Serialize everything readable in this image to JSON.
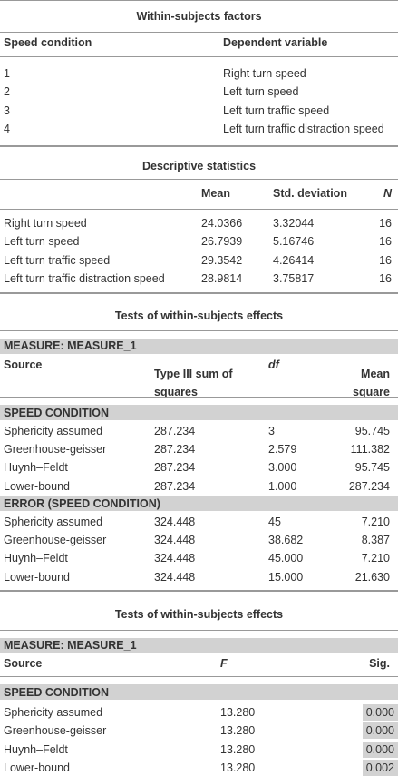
{
  "within_subjects_factors": {
    "title": "Within-subjects factors",
    "header": [
      "Speed condition",
      "Dependent variable"
    ],
    "rows": [
      [
        "1",
        "Right turn speed"
      ],
      [
        "2",
        "Left turn speed"
      ],
      [
        "3",
        "Left turn traffic speed"
      ],
      [
        "4",
        "Left turn traffic distraction speed"
      ]
    ]
  },
  "descriptive_statistics": {
    "title": "Descriptive statistics",
    "header": [
      "Mean",
      "Std. deviation",
      "N"
    ],
    "rows": [
      [
        "Right turn speed",
        "24.0366",
        "3.32044",
        "16"
      ],
      [
        "Left turn speed",
        "26.7939",
        "5.16746",
        "16"
      ],
      [
        "Left turn traffic speed",
        "29.3542",
        "4.26414",
        "16"
      ],
      [
        "Left turn traffic distraction speed",
        "28.9814",
        "3.75817",
        "16"
      ]
    ]
  },
  "tests_of_effects_1": {
    "title": "Tests of within-subjects effects",
    "measure": "MEASURE: MEASURE_1",
    "header": [
      "Source",
      "Type III sum of squares",
      "df",
      "Mean square"
    ],
    "groups": [
      {
        "label": "SPEED CONDITION",
        "rows": [
          [
            "Sphericity assumed",
            "287.234",
            "3",
            "95.745"
          ],
          [
            "Greenhouse-geisser",
            "287.234",
            "2.579",
            "111.382"
          ],
          [
            "Huynh–Feldt",
            "287.234",
            "3.000",
            "95.745"
          ],
          [
            "Lower-bound",
            "287.234",
            "1.000",
            "287.234"
          ]
        ]
      },
      {
        "label": "ERROR (SPEED CONDITION)",
        "rows": [
          [
            "Sphericity assumed",
            "324.448",
            "45",
            "7.210"
          ],
          [
            "Greenhouse-geisser",
            "324.448",
            "38.682",
            "8.387"
          ],
          [
            "Huynh–Feldt",
            "324.448",
            "45.000",
            "7.210"
          ],
          [
            "Lower-bound",
            "324.448",
            "15.000",
            "21.630"
          ]
        ]
      }
    ]
  },
  "tests_of_effects_2": {
    "title": "Tests of within-subjects effects",
    "measure": "MEASURE: MEASURE_1",
    "header": [
      "Source",
      "F",
      "Sig."
    ],
    "groups": [
      {
        "label": "SPEED CONDITION",
        "rows": [
          [
            "Sphericity assumed",
            "13.280",
            "0.000"
          ],
          [
            "Greenhouse-geisser",
            "13.280",
            "0.000"
          ],
          [
            "Huynh–Feldt",
            "13.280",
            "0.000"
          ],
          [
            "Lower-bound",
            "13.280",
            "0.002"
          ]
        ]
      }
    ]
  }
}
